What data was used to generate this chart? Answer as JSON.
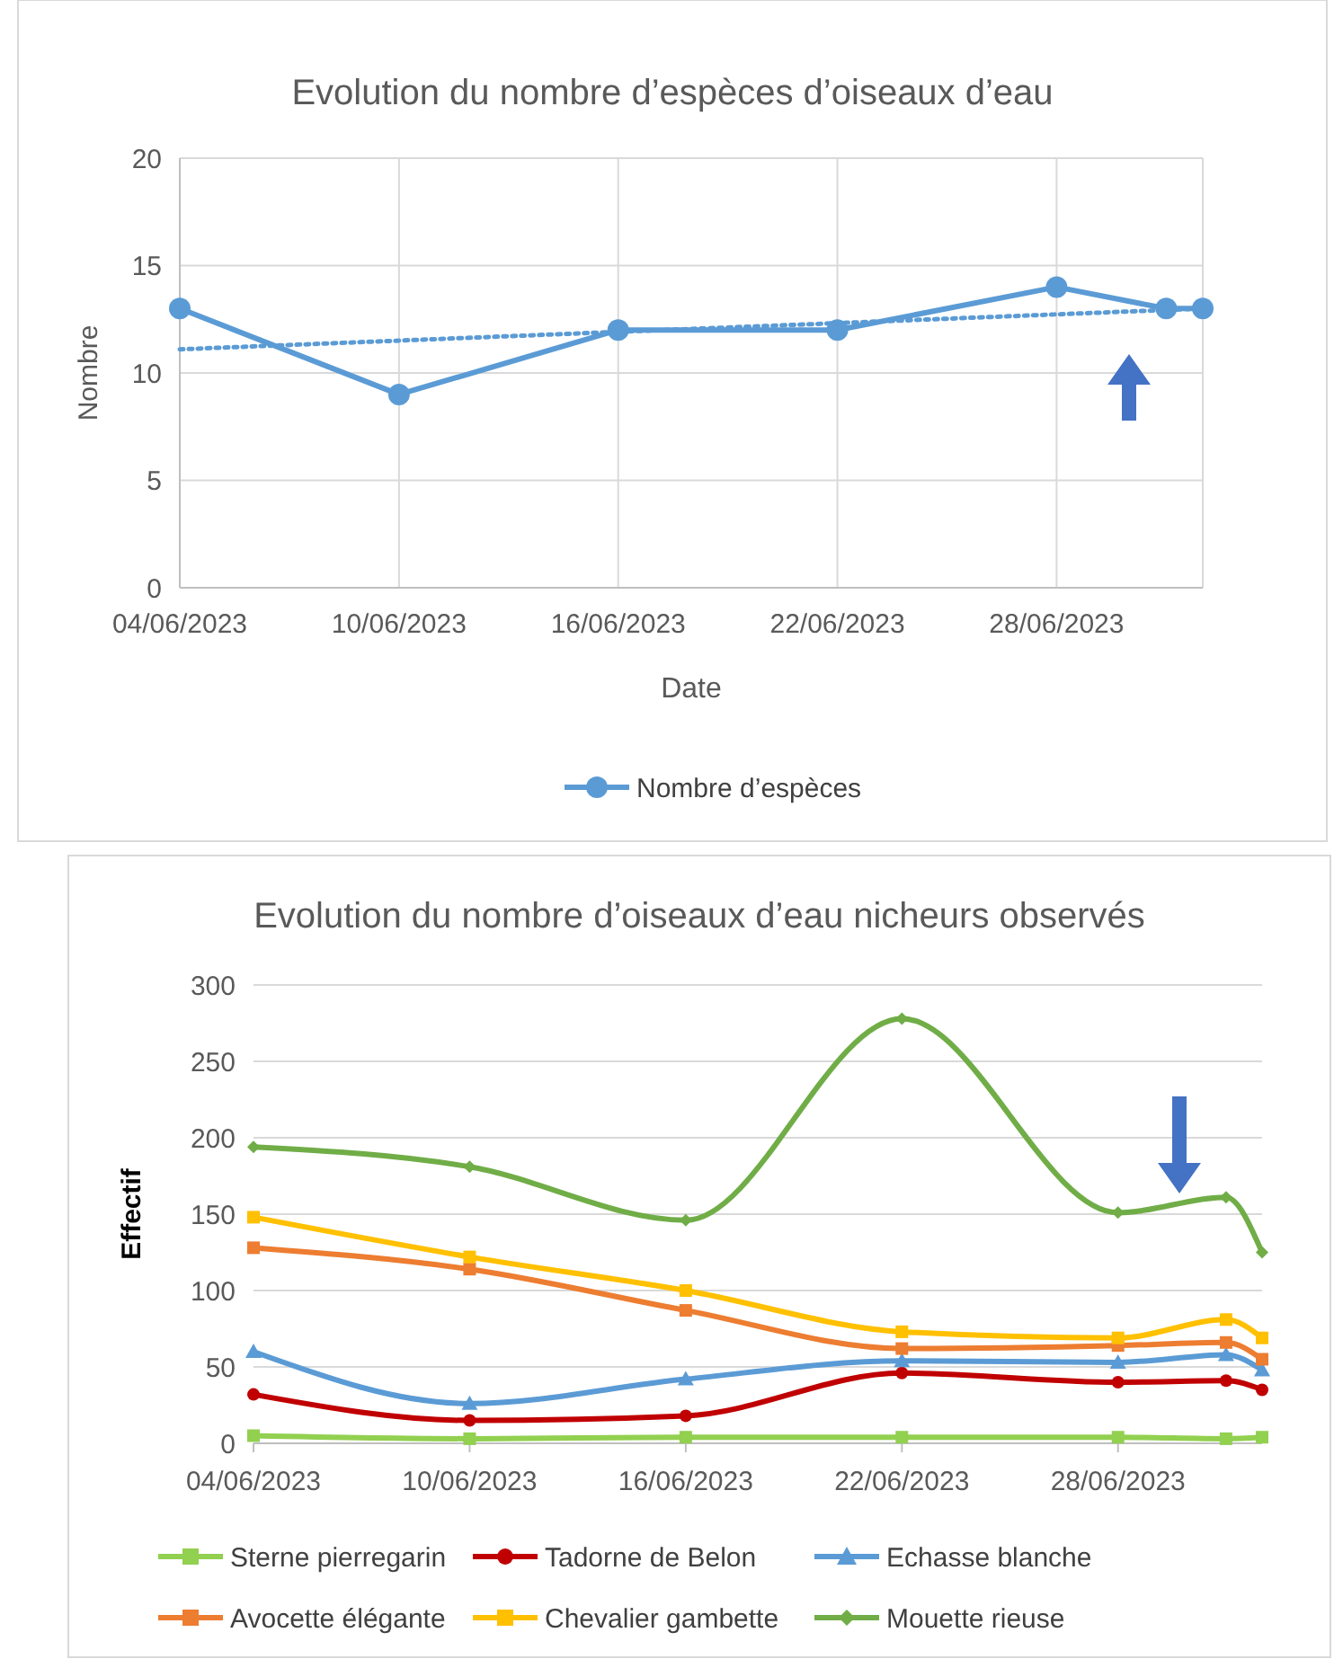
{
  "chart_data": [
    {
      "type": "line",
      "title": "Evolution du nombre d’espèces d’oiseaux d’eau",
      "xlabel": "Date",
      "ylabel": "Nombre",
      "x": [
        "2023-06-04",
        "2023-06-10",
        "2023-06-16",
        "2023-06-22",
        "2023-06-28",
        "2023-07-01",
        "2023-07-02"
      ],
      "series": [
        {
          "name": "Nombre d’espèces",
          "color": "#5b9bd5",
          "values": [
            13,
            9,
            12,
            12,
            14,
            13,
            13
          ],
          "marker": "circle",
          "line_style": "solid"
        },
        {
          "type": "line",
          "x": [
            "2023-06-04",
            "2023-07-02"
          ],
          "color": "#5b9bd5",
          "values": [
            11.1,
            13
          ],
          "marker": "none",
          "line_style": "dotted"
        }
      ],
      "xlim": [
        "2023-06-04",
        "2023-07-02"
      ],
      "xticks": [
        {
          "value": "2023-06-04",
          "label": "04/06/2023"
        },
        {
          "value": "2023-06-10",
          "label": "10/06/2023"
        },
        {
          "value": "2023-06-16",
          "label": "16/06/2023"
        },
        {
          "value": "2023-06-22",
          "label": "22/06/2023"
        },
        {
          "value": "2023-06-28",
          "label": "28/06/2023"
        }
      ],
      "ylim": [
        0,
        20
      ],
      "yticks": [
        0,
        5,
        10,
        15,
        20
      ],
      "grid": true,
      "legend": "bottom"
    },
    {
      "type": "line",
      "title": "Evolution du nombre d’oiseaux d’eau nicheurs observés",
      "ylabel": "Effectif",
      "x": [
        "2023-06-04",
        "2023-06-10",
        "2023-06-16",
        "2023-06-22",
        "2023-06-28",
        "2023-07-01",
        "2023-07-02"
      ],
      "series": [
        {
          "name": "Sterne pierregarin",
          "color": "#92d050",
          "values": [
            5,
            3,
            4,
            4,
            4,
            3,
            4
          ],
          "marker": "square"
        },
        {
          "name": "Tadorne de Belon",
          "color": "#c00000",
          "values": [
            32,
            15,
            18,
            46,
            40,
            41,
            35
          ],
          "marker": "circle"
        },
        {
          "name": "Echasse blanche",
          "color": "#5b9bd5",
          "values": [
            60,
            26,
            42,
            54,
            53,
            58,
            48
          ],
          "marker": "triangle"
        },
        {
          "name": "Avocette élégante",
          "color": "#ed7d31",
          "values": [
            128,
            114,
            87,
            62,
            64,
            66,
            55
          ],
          "marker": "square"
        },
        {
          "name": "Chevalier gambette",
          "color": "#ffc000",
          "values": [
            148,
            122,
            100,
            73,
            69,
            81,
            69
          ],
          "marker": "square"
        },
        {
          "name": "Mouette rieuse",
          "color": "#70ad47",
          "values": [
            194,
            181,
            146,
            278,
            151,
            161,
            125
          ],
          "marker": "diamond"
        }
      ],
      "xlim": [
        "2023-06-04",
        "2023-07-02"
      ],
      "xticks": [
        {
          "value": "2023-06-04",
          "label": "04/06/2023"
        },
        {
          "value": "2023-06-10",
          "label": "10/06/2023"
        },
        {
          "value": "2023-06-16",
          "label": "16/06/2023"
        },
        {
          "value": "2023-06-22",
          "label": "22/06/2023"
        },
        {
          "value": "2023-06-28",
          "label": "28/06/2023"
        }
      ],
      "ylim": [
        0,
        300
      ],
      "yticks": [
        0,
        50,
        100,
        150,
        200,
        250,
        300
      ],
      "grid": "y",
      "legend": "bottom"
    }
  ]
}
